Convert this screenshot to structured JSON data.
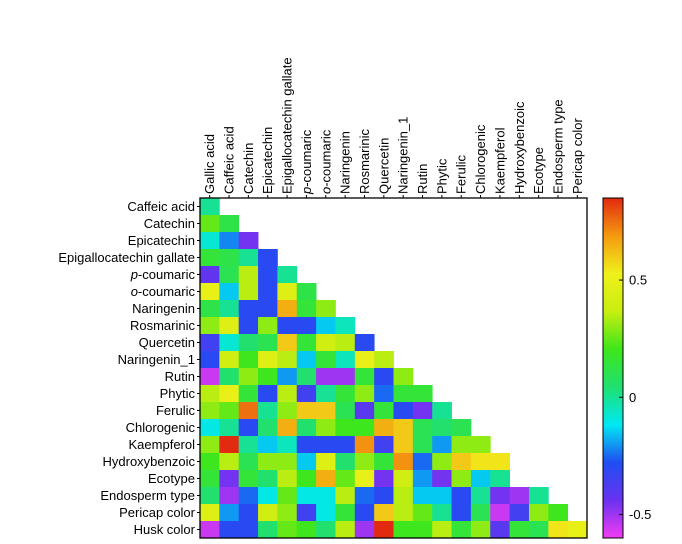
{
  "chart_data": {
    "type": "heatmap",
    "shape": "lower-triangular",
    "column_labels": [
      "Gallic acid",
      "Caffeic acid",
      "Catechin",
      "Epicatechin",
      "Epigallocatechin gallate",
      "p-coumaric",
      "o-coumaric",
      "Naringenin",
      "Rosmarinic",
      "Quercetin",
      "Naringenin_1",
      "Rutin",
      "Phytic",
      "Ferulic",
      "Chlorogenic",
      "Kaempferol",
      "Hydroxybenzoic",
      "Ecotype",
      "Endosperm type",
      "Pericap color"
    ],
    "row_labels": [
      "Caffeic acid",
      "Catechin",
      "Epicatechin",
      "Epigallocatechin gallate",
      "p-coumaric",
      "o-coumaric",
      "Naringenin",
      "Rosmarinic",
      "Quercetin",
      "Naringenin_1",
      "Rutin",
      "Phytic",
      "Ferulic",
      "Chlorogenic",
      "Kaempferol",
      "Hydroxybenzoic",
      "Ecotype",
      "Endosperm type",
      "Pericap color",
      "Husk color"
    ],
    "values": [
      [
        0.0
      ],
      [
        0.25,
        0.12
      ],
      [
        -0.08,
        -0.22,
        -0.45
      ],
      [
        0.15,
        0.12,
        0.0,
        -0.3
      ],
      [
        -0.42,
        0.1,
        0.35,
        -0.3,
        0.0
      ],
      [
        0.5,
        -0.15,
        0.35,
        -0.3,
        0.45,
        0.12
      ],
      [
        0.12,
        0.0,
        -0.3,
        -0.3,
        0.65,
        0.15,
        0.3
      ],
      [
        0.3,
        0.45,
        -0.3,
        0.3,
        -0.3,
        -0.3,
        -0.15,
        -0.05
      ],
      [
        -0.35,
        -0.08,
        0.05,
        0.1,
        0.6,
        0.15,
        0.4,
        0.35,
        -0.3
      ],
      [
        -0.3,
        0.4,
        0.2,
        0.45,
        0.35,
        -0.15,
        0.15,
        -0.05,
        0.5,
        0.35
      ],
      [
        -0.55,
        0.05,
        0.3,
        0.2,
        -0.2,
        0.05,
        -0.5,
        -0.5,
        0.15,
        -0.3,
        0.3
      ],
      [
        0.35,
        0.5,
        0.15,
        -0.3,
        0.35,
        -0.35,
        0.0,
        0.15,
        0.3,
        -0.25,
        0.15,
        0.15
      ],
      [
        0.3,
        0.25,
        0.75,
        0.0,
        0.3,
        0.6,
        0.6,
        0.1,
        -0.4,
        0.15,
        -0.3,
        -0.45,
        0.0
      ],
      [
        -0.1,
        0.0,
        -0.3,
        0.05,
        0.65,
        0.05,
        0.3,
        0.2,
        0.2,
        0.65,
        0.6,
        0.1,
        0.05,
        0.1
      ],
      [
        0.3,
        0.85,
        0.0,
        -0.15,
        -0.05,
        -0.3,
        -0.3,
        -0.3,
        0.7,
        -0.35,
        0.6,
        0.1,
        -0.2,
        0.3,
        0.3
      ],
      [
        0.2,
        0.35,
        0.1,
        0.3,
        0.3,
        -0.15,
        0.45,
        0.05,
        0.3,
        0.15,
        0.7,
        -0.25,
        0.3,
        0.6,
        0.55,
        0.55
      ],
      [
        0.15,
        -0.45,
        0.15,
        0.05,
        0.35,
        0.2,
        0.65,
        0.25,
        0.5,
        -0.45,
        0.4,
        -0.2,
        -0.45,
        0.3,
        -0.15,
        0.0
      ],
      [
        0.05,
        -0.5,
        -0.25,
        -0.1,
        0.25,
        -0.1,
        -0.1,
        0.35,
        -0.25,
        -0.3,
        0.35,
        -0.15,
        -0.15,
        -0.3,
        0.0,
        -0.45,
        -0.5,
        0.0
      ],
      [
        0.45,
        -0.2,
        -0.3,
        0.4,
        0.3,
        -0.35,
        -0.1,
        0.15,
        -0.3,
        0.6,
        0.35,
        0.25,
        0.0,
        -0.3,
        0.1,
        -0.55,
        -0.35,
        0.3,
        0.2
      ],
      [
        -0.55,
        -0.3,
        -0.3,
        0.05,
        0.25,
        0.2,
        0.05,
        0.35,
        -0.5,
        0.85,
        0.2,
        0.2,
        0.35,
        0.15,
        0.3,
        -0.4,
        0.15,
        0.1,
        0.55,
        0.5
      ]
    ],
    "colorbar": {
      "min": -0.6,
      "max": 0.85,
      "ticks": [
        {
          "value": 0.5,
          "label": "0.5"
        },
        {
          "value": 0,
          "label": "0"
        },
        {
          "value": -0.5,
          "label": "-0.5"
        }
      ],
      "colors": [
        "#f23cf2",
        "#6a32f0",
        "#1f4ef2",
        "#00e9f2",
        "#20e070",
        "#3ee61a",
        "#c8ee10",
        "#f0f01a",
        "#f49a10",
        "#e22a10"
      ]
    },
    "grid": false,
    "legend": "right"
  }
}
